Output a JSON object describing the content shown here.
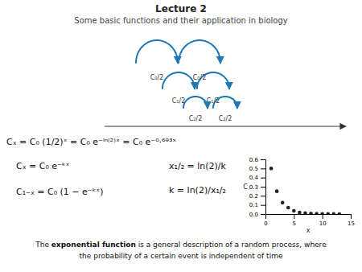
{
  "chart_data": {
    "type": "scatter",
    "title": "Lecture 2",
    "subtitle": "Some basic functions and their application in biology",
    "x": [
      1,
      2,
      3,
      4,
      5,
      6,
      7,
      8,
      9,
      10,
      11,
      12,
      13
    ],
    "values": [
      0.5,
      0.25,
      0.125,
      0.07,
      0.035,
      0.018,
      0.01,
      0.006,
      0.003,
      0.002,
      0.001,
      0.001,
      0.0005
    ],
    "color": "#222222",
    "xlabel": "x",
    "ylabel": "C",
    "xlim": [
      0,
      15
    ],
    "ylim": [
      0,
      0.6
    ],
    "xticks": [
      0,
      5,
      10,
      15
    ],
    "yticks": [
      {
        "value": 0,
        "label": "0.0"
      },
      0.1,
      0.2,
      0.3,
      0.4,
      0.5,
      0.6
    ],
    "grid": false,
    "annotations": [
      "Cₓ = C₀ (1/2)ˣ = C₀ e⁻ˡⁿ⁽²⁾ˣ = C₀ e⁻⁰·⁶⁹³ˣ",
      "Cₓ = C₀ e⁻ᵏˣ",
      "C₁₋ₓ = C₀ (1 − e⁻ᵏˣ)",
      "x₁/₂ = ln(2)/k",
      "k = ln(2)/x₁/₂",
      "C₀/2",
      "C₀/2",
      "C₁/2",
      "C₁/2",
      "C₂/2",
      "C₂/2",
      "The",
      "exponential function",
      "is a general description of a random process, where",
      "the probability of a certain event is independent of time"
    ]
  }
}
